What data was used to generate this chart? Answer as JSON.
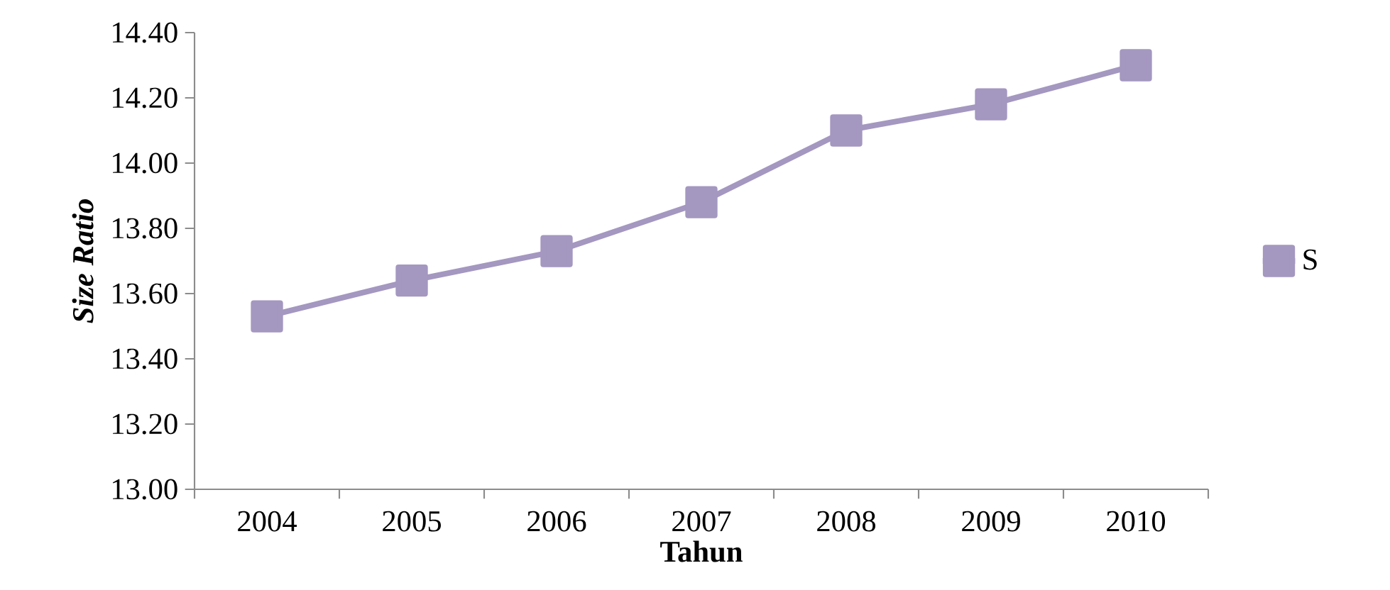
{
  "chart_data": {
    "type": "line",
    "xlabel": "Tahun",
    "ylabel": "Size Ratio",
    "categories": [
      "2004",
      "2005",
      "2006",
      "2007",
      "2008",
      "2009",
      "2010"
    ],
    "series": [
      {
        "name": "S",
        "color": "#a497c0",
        "values": [
          13.53,
          13.64,
          13.73,
          13.88,
          14.1,
          14.18,
          14.3
        ]
      }
    ],
    "ylim": [
      13.0,
      14.4
    ],
    "yticks": [
      {
        "value": 13.0,
        "label": "13.00"
      },
      {
        "value": 13.2,
        "label": "13.20"
      },
      {
        "value": 13.4,
        "label": "13.40"
      },
      {
        "value": 13.6,
        "label": "13.60"
      },
      {
        "value": 13.8,
        "label": "13.80"
      },
      {
        "value": 14.0,
        "label": "14.00"
      },
      {
        "value": 14.2,
        "label": "14.20"
      },
      {
        "value": 14.4,
        "label": "14.40"
      }
    ],
    "grid": false,
    "legend": "right",
    "marker": "square",
    "line_style": "solid"
  }
}
